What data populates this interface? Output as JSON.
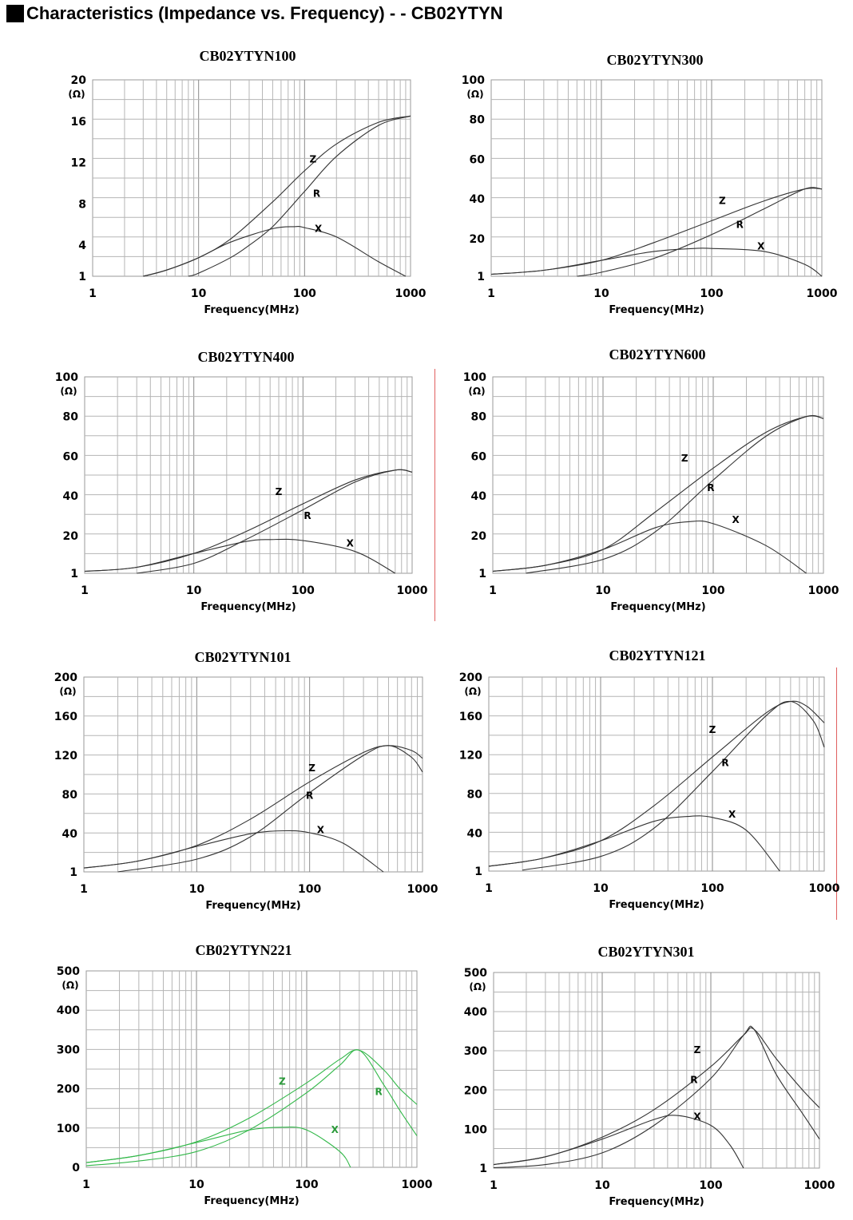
{
  "page": {
    "title": "Characteristics (Impedance vs. Frequency) - - CB02YTYN"
  },
  "chart_data": [
    {
      "type": "line",
      "title": "CB02YTYN100",
      "xlabel": "Frequency(MHz)",
      "ylabel": "(Ω)",
      "xscale": "log",
      "xlim": [
        1,
        1000
      ],
      "ylim": [
        1,
        20
      ],
      "xticks": [
        "1",
        "10",
        "100",
        "1000"
      ],
      "yticks": [
        {
          "v": 1,
          "t": "1"
        },
        {
          "v": 4,
          "t": "4"
        },
        {
          "v": 8,
          "t": "8"
        },
        {
          "v": 12,
          "t": "12"
        },
        {
          "v": 16,
          "t": "16"
        },
        {
          "v": 20,
          "t": "20"
        }
      ],
      "color": "#333333",
      "series": [
        {
          "name": "Z",
          "x": [
            3,
            5,
            10,
            20,
            50,
            100,
            200,
            500,
            1000
          ],
          "values": [
            1.0,
            1.6,
            2.8,
            4.6,
            8.2,
            11.2,
            13.8,
            15.9,
            16.5
          ]
        },
        {
          "name": "R",
          "x": [
            8,
            10,
            20,
            30,
            50,
            100,
            200,
            500,
            1000
          ],
          "values": [
            1.0,
            1.3,
            2.8,
            4.0,
            5.8,
            9.2,
            12.6,
            15.6,
            16.5
          ]
        },
        {
          "name": "X",
          "x": [
            3,
            5,
            10,
            20,
            50,
            80,
            100,
            200,
            500,
            900
          ],
          "values": [
            1.0,
            1.6,
            2.8,
            4.3,
            5.6,
            5.8,
            5.7,
            4.8,
            2.4,
            1.0
          ]
        }
      ],
      "labels": [
        {
          "text": "Z",
          "x": 120,
          "y": 12.3
        },
        {
          "text": "R",
          "x": 130,
          "y": 9.0
        },
        {
          "text": "X",
          "x": 135,
          "y": 5.6
        }
      ]
    },
    {
      "type": "line",
      "title": "CB02YTYN300",
      "xlabel": "Frequency(MHz)",
      "ylabel": "(Ω)",
      "xscale": "log",
      "xlim": [
        1,
        1000
      ],
      "ylim": [
        1,
        100
      ],
      "xticks": [
        "1",
        "10",
        "100",
        "1000"
      ],
      "yticks": [
        {
          "v": 1,
          "t": "1"
        },
        {
          "v": 20,
          "t": "20"
        },
        {
          "v": 40,
          "t": "40"
        },
        {
          "v": 60,
          "t": "60"
        },
        {
          "v": 80,
          "t": "80"
        },
        {
          "v": 100,
          "t": "100"
        }
      ],
      "color": "#333333",
      "series": [
        {
          "name": "Z",
          "x": [
            1,
            3,
            10,
            30,
            100,
            300,
            700,
            1000
          ],
          "values": [
            2,
            4,
            9,
            18,
            29,
            39,
            45,
            45
          ]
        },
        {
          "name": "R",
          "x": [
            6,
            10,
            30,
            100,
            300,
            700,
            1000
          ],
          "values": [
            1,
            3,
            10,
            22,
            35,
            45,
            45
          ]
        },
        {
          "name": "X",
          "x": [
            1,
            3,
            10,
            30,
            70,
            100,
            300,
            700,
            1000
          ],
          "values": [
            2,
            4,
            9,
            13.5,
            15,
            15,
            13.5,
            7,
            1
          ]
        }
      ],
      "labels": [
        {
          "text": "Z",
          "x": 125,
          "y": 39
        },
        {
          "text": "R",
          "x": 180,
          "y": 27
        },
        {
          "text": "X",
          "x": 280,
          "y": 16
        }
      ]
    },
    {
      "type": "line",
      "title": "CB02YTYN400",
      "xlabel": "Frequency(MHz)",
      "ylabel": "(Ω)",
      "xscale": "log",
      "xlim": [
        1,
        1000
      ],
      "ylim": [
        1,
        100
      ],
      "xticks": [
        "1",
        "10",
        "100",
        "1000"
      ],
      "yticks": [
        {
          "v": 1,
          "t": "1"
        },
        {
          "v": 20,
          "t": "20"
        },
        {
          "v": 40,
          "t": "40"
        },
        {
          "v": 60,
          "t": "60"
        },
        {
          "v": 80,
          "t": "80"
        },
        {
          "v": 100,
          "t": "100"
        }
      ],
      "color": "#333333",
      "series": [
        {
          "name": "Z",
          "x": [
            1,
            3,
            10,
            30,
            100,
            300,
            700,
            1000
          ],
          "values": [
            2,
            4,
            11,
            22,
            36,
            48,
            53,
            52
          ]
        },
        {
          "name": "R",
          "x": [
            3,
            10,
            30,
            100,
            300,
            700,
            1000
          ],
          "values": [
            1,
            6,
            18,
            33,
            47,
            53,
            52
          ]
        },
        {
          "name": "X",
          "x": [
            1,
            3,
            10,
            30,
            50,
            100,
            300,
            700
          ],
          "values": [
            2,
            4,
            11,
            17,
            18,
            17.5,
            12,
            1
          ]
        }
      ],
      "labels": [
        {
          "text": "Z",
          "x": 60,
          "y": 42
        },
        {
          "text": "R",
          "x": 110,
          "y": 30
        },
        {
          "text": "X",
          "x": 270,
          "y": 16
        }
      ]
    },
    {
      "type": "line",
      "title": "CB02YTYN600",
      "xlabel": "Frequency(MHz)",
      "ylabel": "(Ω)",
      "xscale": "log",
      "xlim": [
        1,
        1000
      ],
      "ylim": [
        1,
        100
      ],
      "xticks": [
        "1",
        "10",
        "100",
        "1000"
      ],
      "yticks": [
        {
          "v": 1,
          "t": "1"
        },
        {
          "v": 20,
          "t": "20"
        },
        {
          "v": 40,
          "t": "40"
        },
        {
          "v": 60,
          "t": "60"
        },
        {
          "v": 80,
          "t": "80"
        },
        {
          "v": 100,
          "t": "100"
        }
      ],
      "color": "#333333",
      "series": [
        {
          "name": "Z",
          "x": [
            1,
            3,
            10,
            30,
            100,
            300,
            700,
            1000
          ],
          "values": [
            2,
            5,
            13,
            32,
            54,
            72,
            80,
            79
          ]
        },
        {
          "name": "R",
          "x": [
            2,
            10,
            30,
            100,
            300,
            700,
            1000
          ],
          "values": [
            1,
            8,
            22,
            48,
            70,
            80,
            79
          ]
        },
        {
          "name": "X",
          "x": [
            1,
            3,
            10,
            30,
            60,
            100,
            300,
            700
          ],
          "values": [
            2,
            5,
            13,
            24,
            27,
            26,
            15,
            1
          ]
        }
      ],
      "labels": [
        {
          "text": "Z",
          "x": 55,
          "y": 59
        },
        {
          "text": "R",
          "x": 95,
          "y": 44
        },
        {
          "text": "X",
          "x": 160,
          "y": 28
        }
      ]
    },
    {
      "type": "line",
      "title": "CB02YTYN101",
      "xlabel": "Frequency(MHz)",
      "ylabel": "(Ω)",
      "xscale": "log",
      "xlim": [
        1,
        1000
      ],
      "ylim": [
        1,
        200
      ],
      "xticks": [
        "1",
        "10",
        "100",
        "1000"
      ],
      "yticks": [
        {
          "v": 1,
          "t": "1"
        },
        {
          "v": 40,
          "t": "40"
        },
        {
          "v": 80,
          "t": "80"
        },
        {
          "v": 120,
          "t": "120"
        },
        {
          "v": 160,
          "t": "160"
        },
        {
          "v": 200,
          "t": "200"
        }
      ],
      "color": "#333333",
      "series": [
        {
          "name": "Z",
          "x": [
            1,
            3,
            10,
            30,
            100,
            300,
            500,
            800,
            1000
          ],
          "values": [
            5,
            12,
            28,
            55,
            93,
            123,
            130,
            125,
            117
          ]
        },
        {
          "name": "R",
          "x": [
            2,
            10,
            30,
            100,
            300,
            500,
            800,
            1000
          ],
          "values": [
            1,
            14,
            37,
            82,
            120,
            130,
            118,
            103
          ]
        },
        {
          "name": "X",
          "x": [
            1,
            3,
            10,
            30,
            60,
            100,
            200,
            450
          ],
          "values": [
            5,
            12,
            27,
            40,
            43,
            41,
            30,
            1
          ]
        }
      ],
      "labels": [
        {
          "text": "Z",
          "x": 105,
          "y": 107
        },
        {
          "text": "R",
          "x": 100,
          "y": 79
        },
        {
          "text": "X",
          "x": 125,
          "y": 44
        }
      ]
    },
    {
      "type": "line",
      "title": "CB02YTYN121",
      "xlabel": "Frequency(MHz)",
      "ylabel": "(Ω)",
      "xscale": "log",
      "xlim": [
        1,
        1000
      ],
      "ylim": [
        1,
        200
      ],
      "xticks": [
        "1",
        "10",
        "100",
        "1000"
      ],
      "yticks": [
        {
          "v": 1,
          "t": "1"
        },
        {
          "v": 40,
          "t": "40"
        },
        {
          "v": 80,
          "t": "80"
        },
        {
          "v": 120,
          "t": "120"
        },
        {
          "v": 160,
          "t": "160"
        },
        {
          "v": 200,
          "t": "200"
        }
      ],
      "color": "#333333",
      "series": [
        {
          "name": "Z",
          "x": [
            1,
            3,
            10,
            30,
            100,
            300,
            500,
            700,
            1000
          ],
          "values": [
            6,
            14,
            32,
            68,
            118,
            163,
            175,
            170,
            153
          ]
        },
        {
          "name": "R",
          "x": [
            2,
            10,
            30,
            100,
            300,
            500,
            800,
            1000
          ],
          "values": [
            2,
            16,
            45,
            103,
            160,
            175,
            155,
            128
          ]
        },
        {
          "name": "X",
          "x": [
            1,
            3,
            10,
            30,
            60,
            100,
            200,
            400
          ],
          "values": [
            6,
            14,
            32,
            52,
            57,
            56,
            43,
            1
          ]
        }
      ],
      "labels": [
        {
          "text": "Z",
          "x": 100,
          "y": 146
        },
        {
          "text": "R",
          "x": 130,
          "y": 112
        },
        {
          "text": "X",
          "x": 150,
          "y": 59
        }
      ]
    },
    {
      "type": "line",
      "title": "CB02YTYN221",
      "xlabel": "Frequency(MHz)",
      "ylabel": "(Ω)",
      "xscale": "log",
      "xlim": [
        1,
        1000
      ],
      "ylim": [
        0,
        500
      ],
      "xticks": [
        "1",
        "10",
        "100",
        "1000"
      ],
      "yticks": [
        {
          "v": 0,
          "t": "0"
        },
        {
          "v": 100,
          "t": "100"
        },
        {
          "v": 200,
          "t": "200"
        },
        {
          "v": 300,
          "t": "300"
        },
        {
          "v": 400,
          "t": "400"
        },
        {
          "v": 500,
          "t": "500"
        }
      ],
      "color": "#33b84a",
      "series": [
        {
          "name": "Z",
          "x": [
            1,
            3,
            10,
            30,
            100,
            200,
            300,
            500,
            700,
            1000
          ],
          "values": [
            12,
            30,
            65,
            125,
            215,
            275,
            298,
            248,
            200,
            160
          ]
        },
        {
          "name": "R",
          "x": [
            1,
            3,
            10,
            30,
            100,
            200,
            300,
            500,
            700,
            1000
          ],
          "values": [
            4,
            16,
            40,
            95,
            190,
            260,
            298,
            210,
            145,
            80
          ]
        },
        {
          "name": "X",
          "x": [
            1,
            3,
            10,
            30,
            60,
            100,
            200,
            250
          ],
          "values": [
            12,
            30,
            63,
            95,
            102,
            95,
            40,
            0
          ]
        }
      ],
      "labels": [
        {
          "text": "Z",
          "x": 60,
          "y": 218
        },
        {
          "text": "R",
          "x": 450,
          "y": 192
        },
        {
          "text": "X",
          "x": 180,
          "y": 96
        }
      ]
    },
    {
      "type": "line",
      "title": "CB02YTYN301",
      "xlabel": "Frequency(MHz)",
      "ylabel": "(Ω)",
      "xscale": "log",
      "xlim": [
        1,
        1000
      ],
      "ylim": [
        1,
        500
      ],
      "xticks": [
        "1",
        "10",
        "100",
        "1000"
      ],
      "yticks": [
        {
          "v": 1,
          "t": "1"
        },
        {
          "v": 100,
          "t": "100"
        },
        {
          "v": 200,
          "t": "200"
        },
        {
          "v": 300,
          "t": "300"
        },
        {
          "v": 400,
          "t": "400"
        },
        {
          "v": 500,
          "t": "500"
        }
      ],
      "color": "#333333",
      "series": [
        {
          "name": "Z",
          "x": [
            1,
            3,
            10,
            30,
            100,
            200,
            250,
            400,
            700,
            1000
          ],
          "values": [
            10,
            30,
            80,
            150,
            260,
            340,
            355,
            280,
            200,
            155
          ]
        },
        {
          "name": "R",
          "x": [
            1,
            3,
            10,
            30,
            100,
            200,
            250,
            400,
            700,
            1000
          ],
          "values": [
            2,
            10,
            40,
            110,
            230,
            340,
            355,
            240,
            140,
            75
          ]
        },
        {
          "name": "X",
          "x": [
            1,
            3,
            10,
            30,
            50,
            100,
            150,
            200
          ],
          "values": [
            10,
            30,
            75,
            125,
            135,
            110,
            60,
            1
          ]
        }
      ],
      "labels": [
        {
          "text": "Z",
          "x": 75,
          "y": 302
        },
        {
          "text": "R",
          "x": 70,
          "y": 226
        },
        {
          "text": "X",
          "x": 75,
          "y": 132
        }
      ]
    }
  ]
}
